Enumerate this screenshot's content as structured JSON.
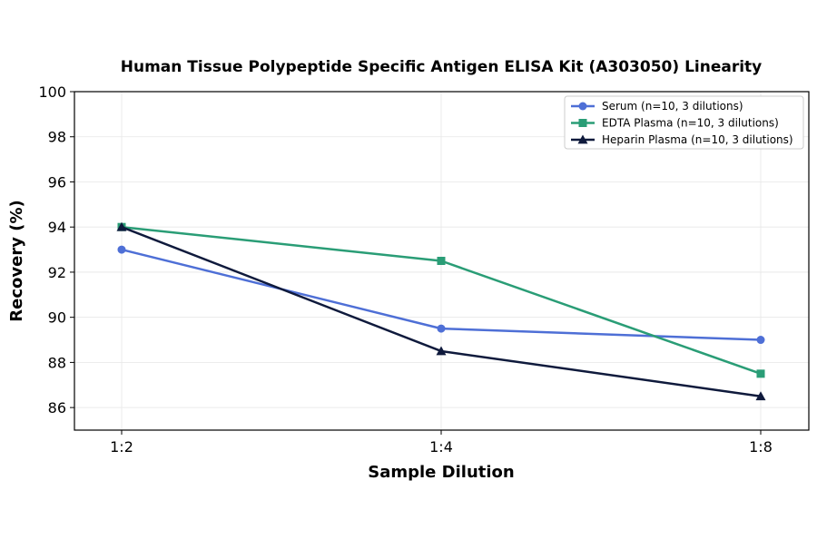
{
  "chart_data": {
    "type": "line",
    "title": "Human Tissue Polypeptide Specific Antigen ELISA Kit (A303050) Linearity",
    "xlabel": "Sample Dilution",
    "ylabel": "Recovery (%)",
    "categories": [
      "1:2",
      "1:4",
      "1:8"
    ],
    "ylim": [
      85,
      100
    ],
    "yticks": [
      86,
      88,
      90,
      92,
      94,
      96,
      98,
      100
    ],
    "grid": true,
    "legend_position": "top-right",
    "series": [
      {
        "name": "Serum (n=10, 3 dilutions)",
        "values": [
          93.0,
          89.5,
          89.0
        ],
        "color": "#4e6fd6",
        "marker": "circle"
      },
      {
        "name": "EDTA Plasma (n=10, 3 dilutions)",
        "values": [
          94.0,
          92.5,
          87.5
        ],
        "color": "#2a9d76",
        "marker": "square"
      },
      {
        "name": "Heparin Plasma (n=10, 3 dilutions)",
        "values": [
          94.0,
          88.5,
          86.5
        ],
        "color": "#0f1a3c",
        "marker": "triangle"
      }
    ]
  }
}
